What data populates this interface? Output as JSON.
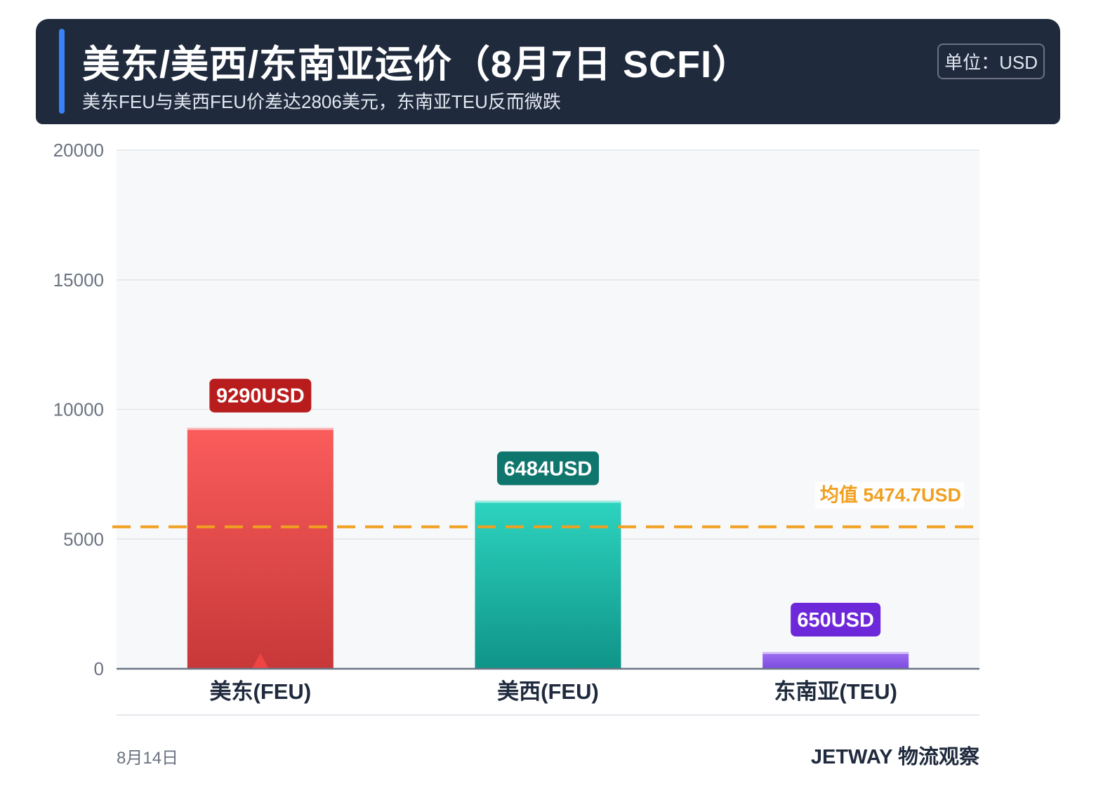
{
  "header": {
    "title": "美东/美西/东南亚运价（8月7日 SCFI）",
    "subtitle": "美东FEU与美西FEU价差达2806美元，东南亚TEU反而微跌",
    "unit": "单位：USD"
  },
  "footer": {
    "date": "8月14日",
    "brand": "JETWAY 物流观察"
  },
  "colors": {
    "header_bg": "#1f2a3d",
    "accent": "#3b82f6",
    "mean_line": "#f0a020"
  },
  "chart_data": {
    "type": "bar",
    "categories": [
      "美东(FEU)",
      "美西(FEU)",
      "东南亚(TEU)"
    ],
    "values": [
      9290,
      6484,
      650
    ],
    "data_labels": [
      "9290USD",
      "6484USD",
      "650USD"
    ],
    "bar_colors": [
      {
        "top": "#fb5c5c",
        "bottom": "#c73838",
        "label_bg": "#b91c1c"
      },
      {
        "top": "#2dd4bf",
        "bottom": "#0f9488",
        "label_bg": "#0f766e"
      },
      {
        "top": "#a070f0",
        "bottom": "#7c4be0",
        "label_bg": "#6d28d9"
      }
    ],
    "ylim": [
      0,
      20000
    ],
    "yticks": [
      0,
      5000,
      10000,
      15000,
      20000
    ],
    "grid": true,
    "mean": 5474.7,
    "mean_label": "均值 5474.7USD",
    "marker_category": "美东(FEU)",
    "marker_color": "#ef4444"
  }
}
